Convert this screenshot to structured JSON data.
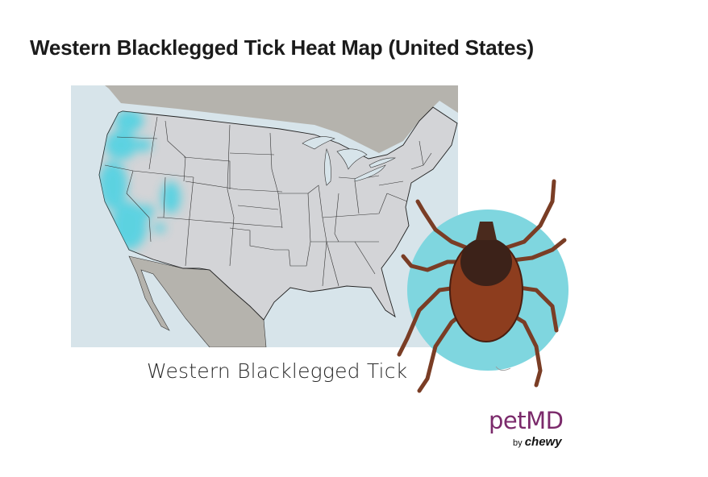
{
  "title": "Western Blacklegged Tick Heat Map (United States)",
  "caption": "Western Blacklegged Tick",
  "logo": {
    "name": "petMD",
    "by": "by",
    "brand": "chewy"
  },
  "colors": {
    "ocean": "#d7e4ea",
    "us_land": "#d3d4d7",
    "other_land": "#b5b3ad",
    "heat": "#4fd2e2",
    "tick_circle": "#7fd6df",
    "logo": "#7b2a6b"
  },
  "heat_regions": [
    "Washington coast",
    "Oregon",
    "California",
    "Western Nevada",
    "Western Utah",
    "Arizona west"
  ]
}
